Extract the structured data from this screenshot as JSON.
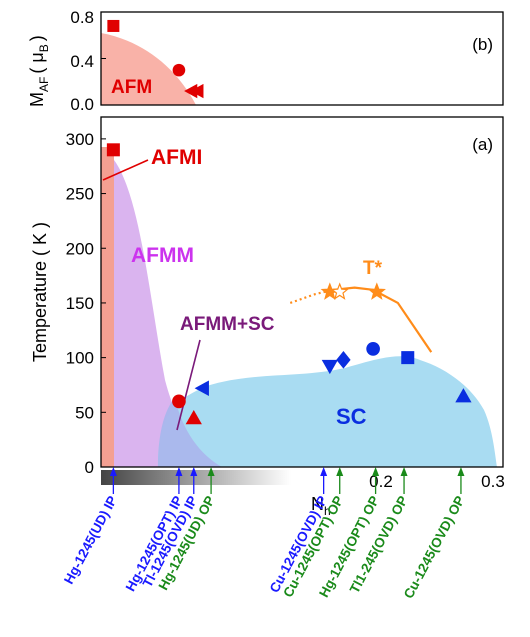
{
  "chart_data": [
    {
      "panel_label": "(b)",
      "type": "scatter",
      "ylabel": "M",
      "ylabel_sub": "AF",
      "ylabel_unit_open": "( μ",
      "ylabel_unit_sub": "B",
      "ylabel_unit_close": ")",
      "xlim": [
        -0.005,
        0.32
      ],
      "ylim": [
        0,
        0.8
      ],
      "yticks": [
        "0.0",
        "0.4",
        "0.8"
      ],
      "regions": [
        {
          "label": "AFM",
          "color": "#e00000"
        }
      ],
      "points": [
        {
          "x": 0.005,
          "y": 0.68,
          "marker": "square"
        },
        {
          "x": 0.058,
          "y": 0.3,
          "marker": "circle"
        },
        {
          "x": 0.068,
          "y": 0.12,
          "marker": "triangle-left"
        },
        {
          "x": 0.073,
          "y": 0.12,
          "marker": "triangle-left"
        }
      ]
    },
    {
      "panel_label": "(a)",
      "type": "scatter",
      "xlabel": "N",
      "xlabel_sub": "h",
      "ylabel": "Temperature ( K )",
      "xlim": [
        -0.005,
        0.32
      ],
      "ylim": [
        0,
        320
      ],
      "yticks": [
        "0",
        "50",
        "100",
        "150",
        "200",
        "250",
        "300"
      ],
      "xticks": [
        "0.2",
        "0.3"
      ],
      "regions": [
        {
          "label": "AFMI",
          "color": "#e00000"
        },
        {
          "label": "AFMM",
          "color": "#cc33ee"
        },
        {
          "label": "AFMM+SC",
          "color": "#7a1a7a"
        },
        {
          "label": "SC",
          "color": "#0a2ee0"
        }
      ],
      "tstar": {
        "label": "T*",
        "color": "#ff8c1a",
        "line_dotted": [
          [
            0.148,
            150
          ],
          [
            0.168,
            158
          ],
          [
            0.183,
            162
          ]
        ],
        "line_solid": [
          [
            0.183,
            162
          ],
          [
            0.2,
            164
          ],
          [
            0.215,
            162
          ],
          [
            0.235,
            150
          ],
          [
            0.25,
            125
          ],
          [
            0.262,
            105
          ]
        ],
        "stars": [
          {
            "x": 0.18,
            "y": 160,
            "filled": true
          },
          {
            "x": 0.188,
            "y": 160,
            "filled": false
          },
          {
            "x": 0.218,
            "y": 160,
            "filled": true
          }
        ]
      },
      "points": [
        {
          "x": 0.005,
          "y": 290,
          "marker": "square",
          "color": "#e00000"
        },
        {
          "x": 0.058,
          "y": 60,
          "marker": "circle",
          "color": "#e00000"
        },
        {
          "x": 0.07,
          "y": 45,
          "marker": "triangle-up",
          "color": "#e00000"
        },
        {
          "x": 0.077,
          "y": 72,
          "marker": "triangle-left",
          "color": "#0a2ee0"
        },
        {
          "x": 0.18,
          "y": 92,
          "marker": "triangle-down",
          "color": "#0a2ee0"
        },
        {
          "x": 0.191,
          "y": 98,
          "marker": "diamond",
          "color": "#0a2ee0"
        },
        {
          "x": 0.215,
          "y": 108,
          "marker": "circle",
          "color": "#0a2ee0"
        },
        {
          "x": 0.243,
          "y": 100,
          "marker": "square",
          "color": "#0a2ee0"
        },
        {
          "x": 0.288,
          "y": 65,
          "marker": "triangle-up",
          "color": "#0a2ee0"
        }
      ]
    }
  ],
  "colors": {
    "ip": "#1a1aff",
    "op": "#1a8a1a"
  },
  "compounds": [
    {
      "label": "Hg-1245(UD) IP",
      "type": "ip",
      "x": 0.005
    },
    {
      "label": "Hg-1245(OPT) IP",
      "type": "ip",
      "x": 0.058
    },
    {
      "label": "Tl-1245(OVD) IP",
      "type": "ip",
      "x": 0.07
    },
    {
      "label": "Hg-1245(UD) OP",
      "type": "op",
      "x": 0.084
    },
    {
      "label": "Cu-1245(OVD) IP",
      "type": "ip",
      "x": 0.175
    },
    {
      "label": "Cu-1245(OPT) OP",
      "type": "op",
      "x": 0.188
    },
    {
      "label": "Hg-1245(OPT) OP",
      "type": "op",
      "x": 0.217
    },
    {
      "label": "Tl1-245(OVD) OP",
      "type": "op",
      "x": 0.24
    },
    {
      "label": "Cu-1245(OVD) OP",
      "type": "op",
      "x": 0.286
    }
  ]
}
